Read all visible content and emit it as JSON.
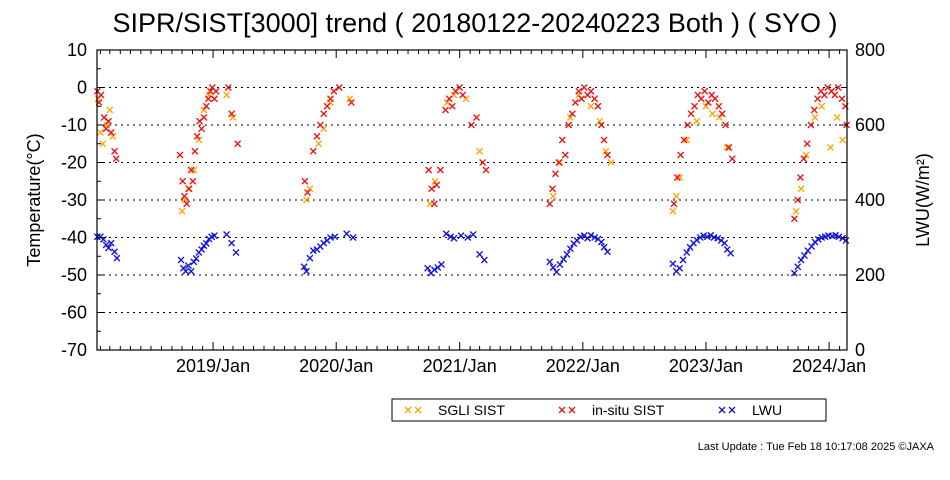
{
  "footer": "Last Update : Tue Feb 18 10:17:08 2025  ©JAXA",
  "chart_data": {
    "type": "scatter",
    "title": "SIPR/SIST[3000] trend ( 20180122-20240223 Both ) ( SYO )",
    "xlabel": "",
    "ylabel": "Temperature(°C)",
    "y2label": "LWU(W/m²)",
    "xlim": [
      "2018-01-22",
      "2024-02-23"
    ],
    "ylim": [
      -70,
      10
    ],
    "y2lim": [
      0,
      800
    ],
    "yticks": [
      10,
      0,
      -10,
      -20,
      -30,
      -40,
      -50,
      -60,
      -70
    ],
    "y2ticks": [
      800,
      600,
      400,
      200,
      0
    ],
    "xticks": [
      {
        "date": "2019-01-01",
        "label": "2019/Jan"
      },
      {
        "date": "2020-01-01",
        "label": "2020/Jan"
      },
      {
        "date": "2021-01-01",
        "label": "2021/Jan"
      },
      {
        "date": "2022-01-01",
        "label": "2022/Jan"
      },
      {
        "date": "2023-01-01",
        "label": "2023/Jan"
      },
      {
        "date": "2024-01-01",
        "label": "2024/Jan"
      }
    ],
    "grid": "horizontal dotted",
    "legend_position": "bottom",
    "marker": "×",
    "series": [
      {
        "name": "SGLI SIST",
        "color": "#ffa500",
        "axis": "left",
        "points": [
          [
            "2018-01-25",
            -3
          ],
          [
            "2018-02-01",
            -12
          ],
          [
            "2018-02-08",
            -15
          ],
          [
            "2018-02-20",
            -10
          ],
          [
            "2018-03-01",
            -6
          ],
          [
            "2018-03-10",
            -13
          ],
          [
            "2018-10-01",
            -33
          ],
          [
            "2018-10-10",
            -30
          ],
          [
            "2018-10-20",
            -27
          ],
          [
            "2018-11-05",
            -22
          ],
          [
            "2018-11-20",
            -14
          ],
          [
            "2018-12-05",
            -6
          ],
          [
            "2018-12-20",
            -2
          ],
          [
            "2019-02-10",
            -2
          ],
          [
            "2019-03-01",
            -8
          ],
          [
            "2019-10-05",
            -30
          ],
          [
            "2019-10-15",
            -27
          ],
          [
            "2019-11-10",
            -15
          ],
          [
            "2019-11-25",
            -11
          ],
          [
            "2019-12-15",
            -4
          ],
          [
            "2020-02-10",
            -3
          ],
          [
            "2020-10-05",
            -31
          ],
          [
            "2020-10-20",
            -25
          ],
          [
            "2020-11-25",
            -4
          ],
          [
            "2020-12-15",
            -2
          ],
          [
            "2021-01-20",
            -3
          ],
          [
            "2021-03-01",
            -17
          ],
          [
            "2021-10-05",
            -29
          ],
          [
            "2021-10-25",
            -20
          ],
          [
            "2021-11-25",
            -8
          ],
          [
            "2021-12-20",
            -2
          ],
          [
            "2022-01-25",
            -5
          ],
          [
            "2022-02-20",
            -9
          ],
          [
            "2022-03-10",
            -17
          ],
          [
            "2022-03-25",
            -20
          ],
          [
            "2022-09-25",
            -33
          ],
          [
            "2022-10-05",
            -29
          ],
          [
            "2022-10-15",
            -24
          ],
          [
            "2022-11-05",
            -14
          ],
          [
            "2022-12-05",
            -9
          ],
          [
            "2023-01-01",
            -5
          ],
          [
            "2023-01-20",
            -7
          ],
          [
            "2023-02-10",
            -8
          ],
          [
            "2023-03-05",
            -16
          ],
          [
            "2023-09-25",
            -33
          ],
          [
            "2023-10-10",
            -27
          ],
          [
            "2023-10-25",
            -18
          ],
          [
            "2023-11-20",
            -8
          ],
          [
            "2023-12-10",
            -5
          ],
          [
            "2024-01-05",
            -16
          ],
          [
            "2024-01-25",
            -8
          ],
          [
            "2024-02-10",
            -14
          ]
        ]
      },
      {
        "name": "in-situ SIST",
        "color": "#ee1111",
        "axis": "left",
        "points": [
          [
            "2018-01-23",
            -1
          ],
          [
            "2018-01-28",
            -4
          ],
          [
            "2018-02-03",
            -2
          ],
          [
            "2018-02-12",
            -8
          ],
          [
            "2018-02-18",
            -11
          ],
          [
            "2018-02-25",
            -9
          ],
          [
            "2018-03-05",
            -12
          ],
          [
            "2018-03-15",
            -17
          ],
          [
            "2018-03-20",
            -19
          ],
          [
            "2018-09-25",
            -18
          ],
          [
            "2018-10-03",
            -25
          ],
          [
            "2018-10-08",
            -29
          ],
          [
            "2018-10-15",
            -31
          ],
          [
            "2018-10-22",
            -27
          ],
          [
            "2018-10-28",
            -22
          ],
          [
            "2018-11-02",
            -25
          ],
          [
            "2018-11-08",
            -17
          ],
          [
            "2018-11-15",
            -13
          ],
          [
            "2018-11-22",
            -9
          ],
          [
            "2018-11-28",
            -11
          ],
          [
            "2018-12-05",
            -8
          ],
          [
            "2018-12-12",
            -5
          ],
          [
            "2018-12-18",
            -3
          ],
          [
            "2018-12-24",
            -1
          ],
          [
            "2018-12-30",
            0
          ],
          [
            "2019-01-05",
            -3
          ],
          [
            "2019-01-10",
            -1
          ],
          [
            "2019-02-15",
            0
          ],
          [
            "2019-02-25",
            -7
          ],
          [
            "2019-03-15",
            -15
          ],
          [
            "2019-09-30",
            -25
          ],
          [
            "2019-10-08",
            -28
          ],
          [
            "2019-10-25",
            -17
          ],
          [
            "2019-11-05",
            -13
          ],
          [
            "2019-11-15",
            -10
          ],
          [
            "2019-11-25",
            -7
          ],
          [
            "2019-12-05",
            -5
          ],
          [
            "2019-12-15",
            -3
          ],
          [
            "2019-12-25",
            -1
          ],
          [
            "2020-01-10",
            0
          ],
          [
            "2020-02-15",
            -4
          ],
          [
            "2020-10-01",
            -22
          ],
          [
            "2020-10-10",
            -27
          ],
          [
            "2020-10-18",
            -31
          ],
          [
            "2020-10-25",
            -26
          ],
          [
            "2020-11-05",
            -22
          ],
          [
            "2020-11-20",
            -6
          ],
          [
            "2020-12-01",
            -3
          ],
          [
            "2020-12-10",
            -5
          ],
          [
            "2020-12-20",
            -1
          ],
          [
            "2021-01-01",
            0
          ],
          [
            "2021-01-10",
            -2
          ],
          [
            "2021-02-05",
            -10
          ],
          [
            "2021-02-20",
            -8
          ],
          [
            "2021-03-10",
            -20
          ],
          [
            "2021-03-20",
            -22
          ],
          [
            "2021-09-25",
            -31
          ],
          [
            "2021-10-03",
            -27
          ],
          [
            "2021-10-12",
            -23
          ],
          [
            "2021-10-22",
            -20
          ],
          [
            "2021-11-01",
            -14
          ],
          [
            "2021-11-10",
            -18
          ],
          [
            "2021-11-20",
            -10
          ],
          [
            "2021-12-01",
            -7
          ],
          [
            "2021-12-10",
            -4
          ],
          [
            "2021-12-20",
            -1
          ],
          [
            "2021-12-28",
            -3
          ],
          [
            "2022-01-05",
            0
          ],
          [
            "2022-01-15",
            -2
          ],
          [
            "2022-01-25",
            -1
          ],
          [
            "2022-02-05",
            -3
          ],
          [
            "2022-02-15",
            -5
          ],
          [
            "2022-02-25",
            -10
          ],
          [
            "2022-03-05",
            -14
          ],
          [
            "2022-03-15",
            -18
          ],
          [
            "2022-09-28",
            -31
          ],
          [
            "2022-10-08",
            -24
          ],
          [
            "2022-10-18",
            -18
          ],
          [
            "2022-10-28",
            -14
          ],
          [
            "2022-11-08",
            -10
          ],
          [
            "2022-11-18",
            -7
          ],
          [
            "2022-11-28",
            -5
          ],
          [
            "2022-12-08",
            -2
          ],
          [
            "2022-12-18",
            -3
          ],
          [
            "2022-12-28",
            -1
          ],
          [
            "2023-01-08",
            -4
          ],
          [
            "2023-01-18",
            -2
          ],
          [
            "2023-01-28",
            -3
          ],
          [
            "2023-02-08",
            -5
          ],
          [
            "2023-02-18",
            -7
          ],
          [
            "2023-02-28",
            -10
          ],
          [
            "2023-03-10",
            -16
          ],
          [
            "2023-03-20",
            -19
          ],
          [
            "2023-09-20",
            -35
          ],
          [
            "2023-09-30",
            -30
          ],
          [
            "2023-10-08",
            -24
          ],
          [
            "2023-10-18",
            -19
          ],
          [
            "2023-10-28",
            -15
          ],
          [
            "2023-11-08",
            -10
          ],
          [
            "2023-11-18",
            -6
          ],
          [
            "2023-11-28",
            -3
          ],
          [
            "2023-12-08",
            -1
          ],
          [
            "2023-12-18",
            -2
          ],
          [
            "2023-12-28",
            0
          ],
          [
            "2024-01-08",
            -1
          ],
          [
            "2024-01-18",
            -2
          ],
          [
            "2024-01-28",
            0
          ],
          [
            "2024-02-08",
            -3
          ],
          [
            "2024-02-18",
            -5
          ],
          [
            "2024-02-22",
            -10
          ]
        ]
      },
      {
        "name": "LWU",
        "color": "#1111dd",
        "axis": "right",
        "points": [
          [
            "2018-01-23",
            302
          ],
          [
            "2018-02-01",
            302
          ],
          [
            "2018-02-10",
            295
          ],
          [
            "2018-02-18",
            280
          ],
          [
            "2018-02-25",
            272
          ],
          [
            "2018-03-05",
            285
          ],
          [
            "2018-03-15",
            262
          ],
          [
            "2018-03-22",
            245
          ],
          [
            "2018-09-28",
            240
          ],
          [
            "2018-10-05",
            218
          ],
          [
            "2018-10-12",
            210
          ],
          [
            "2018-10-20",
            225
          ],
          [
            "2018-10-28",
            210
          ],
          [
            "2018-11-05",
            235
          ],
          [
            "2018-11-12",
            244
          ],
          [
            "2018-11-20",
            260
          ],
          [
            "2018-11-28",
            268
          ],
          [
            "2018-12-05",
            278
          ],
          [
            "2018-12-12",
            284
          ],
          [
            "2018-12-20",
            296
          ],
          [
            "2018-12-28",
            302
          ],
          [
            "2019-01-05",
            305
          ],
          [
            "2019-02-10",
            308
          ],
          [
            "2019-02-25",
            285
          ],
          [
            "2019-03-10",
            260
          ],
          [
            "2019-09-28",
            222
          ],
          [
            "2019-10-05",
            210
          ],
          [
            "2019-10-15",
            245
          ],
          [
            "2019-10-25",
            265
          ],
          [
            "2019-11-05",
            268
          ],
          [
            "2019-11-15",
            276
          ],
          [
            "2019-11-25",
            285
          ],
          [
            "2019-12-05",
            292
          ],
          [
            "2019-12-15",
            300
          ],
          [
            "2019-12-28",
            302
          ],
          [
            "2020-02-01",
            310
          ],
          [
            "2020-02-20",
            300
          ],
          [
            "2020-09-28",
            218
          ],
          [
            "2020-10-08",
            205
          ],
          [
            "2020-10-18",
            214
          ],
          [
            "2020-10-28",
            220
          ],
          [
            "2020-11-08",
            228
          ],
          [
            "2020-11-22",
            310
          ],
          [
            "2020-12-05",
            302
          ],
          [
            "2020-12-15",
            298
          ],
          [
            "2021-01-05",
            305
          ],
          [
            "2021-01-25",
            300
          ],
          [
            "2021-02-10",
            308
          ],
          [
            "2021-03-01",
            255
          ],
          [
            "2021-03-15",
            240
          ],
          [
            "2021-09-25",
            235
          ],
          [
            "2021-10-05",
            220
          ],
          [
            "2021-10-15",
            208
          ],
          [
            "2021-10-25",
            228
          ],
          [
            "2021-11-05",
            242
          ],
          [
            "2021-11-15",
            255
          ],
          [
            "2021-11-25",
            270
          ],
          [
            "2021-12-05",
            284
          ],
          [
            "2021-12-15",
            292
          ],
          [
            "2021-12-25",
            302
          ],
          [
            "2022-01-05",
            305
          ],
          [
            "2022-01-15",
            298
          ],
          [
            "2022-01-25",
            306
          ],
          [
            "2022-02-05",
            300
          ],
          [
            "2022-02-15",
            296
          ],
          [
            "2022-02-25",
            288
          ],
          [
            "2022-03-05",
            274
          ],
          [
            "2022-03-15",
            262
          ],
          [
            "2022-09-25",
            230
          ],
          [
            "2022-10-05",
            210
          ],
          [
            "2022-10-15",
            218
          ],
          [
            "2022-10-25",
            240
          ],
          [
            "2022-11-05",
            260
          ],
          [
            "2022-11-15",
            274
          ],
          [
            "2022-11-25",
            285
          ],
          [
            "2022-12-05",
            293
          ],
          [
            "2022-12-15",
            300
          ],
          [
            "2022-12-25",
            305
          ],
          [
            "2023-01-05",
            302
          ],
          [
            "2023-01-15",
            306
          ],
          [
            "2023-01-25",
            300
          ],
          [
            "2023-02-05",
            298
          ],
          [
            "2023-02-15",
            292
          ],
          [
            "2023-02-25",
            285
          ],
          [
            "2023-03-05",
            268
          ],
          [
            "2023-03-15",
            258
          ],
          [
            "2023-09-20",
            205
          ],
          [
            "2023-09-30",
            222
          ],
          [
            "2023-10-10",
            240
          ],
          [
            "2023-10-20",
            252
          ],
          [
            "2023-10-30",
            265
          ],
          [
            "2023-11-10",
            276
          ],
          [
            "2023-11-20",
            288
          ],
          [
            "2023-11-30",
            295
          ],
          [
            "2023-12-10",
            300
          ],
          [
            "2023-12-20",
            302
          ],
          [
            "2023-12-30",
            305
          ],
          [
            "2024-01-10",
            304
          ],
          [
            "2024-01-20",
            306
          ],
          [
            "2024-01-30",
            302
          ],
          [
            "2024-02-10",
            298
          ],
          [
            "2024-02-20",
            292
          ]
        ]
      }
    ]
  }
}
